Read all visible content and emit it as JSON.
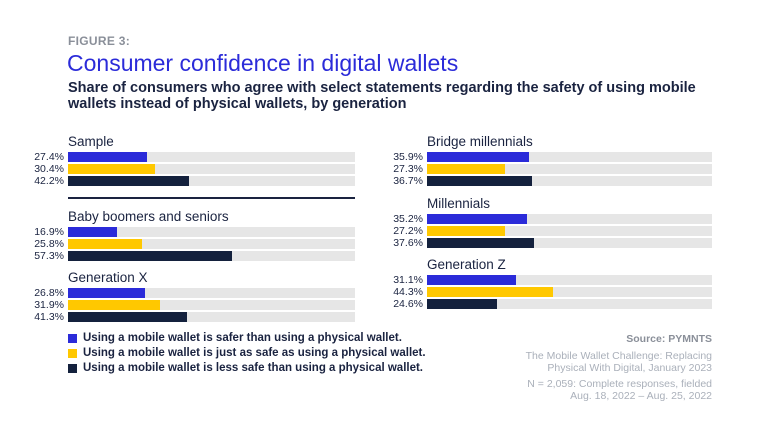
{
  "figure_label": "FIGURE 3:",
  "title": "Consumer confidence in digital wallets",
  "subtitle": "Share of consumers who agree with select statements regarding the safety of using mobile wallets instead of physical wallets, by generation",
  "colors": {
    "safer": "#2b2bd9",
    "just_as_safe": "#ffc800",
    "less_safe": "#14213d",
    "track": "#e6e6e6"
  },
  "chart_data": {
    "type": "bar",
    "orientation": "horizontal",
    "xlim": [
      0,
      100
    ],
    "unit": "%",
    "series_names": [
      "Using a mobile wallet is safer than using a physical wallet.",
      "Using a mobile wallet is just as safe as using a physical wallet.",
      "Using a mobile wallet is less safe than using a physical wallet."
    ],
    "groups": [
      {
        "name": "Sample",
        "values": [
          27.4,
          30.4,
          42.2
        ],
        "labels": [
          "27.4%",
          "30.4%",
          "42.2%"
        ]
      },
      {
        "name": "Baby boomers and seniors",
        "values": [
          16.9,
          25.8,
          57.3
        ],
        "labels": [
          "16.9%",
          "25.8%",
          "57.3%"
        ]
      },
      {
        "name": "Generation X",
        "values": [
          26.8,
          31.9,
          41.3
        ],
        "labels": [
          "26.8%",
          "31.9%",
          "41.3%"
        ]
      },
      {
        "name": "Bridge millennials",
        "values": [
          35.9,
          27.3,
          36.7
        ],
        "labels": [
          "35.9%",
          "27.3%",
          "36.7%"
        ]
      },
      {
        "name": "Millennials",
        "values": [
          35.2,
          27.2,
          37.6
        ],
        "labels": [
          "35.2%",
          "27.2%",
          "37.6%"
        ]
      },
      {
        "name": "Generation Z",
        "values": [
          31.1,
          44.3,
          24.6
        ],
        "labels": [
          "31.1%",
          "44.3%",
          "24.6%"
        ]
      }
    ]
  },
  "source": {
    "label": "Source: PYMNTS",
    "line1": "The Mobile Wallet Challenge: Replacing",
    "line2": "Physical With Digital, January 2023",
    "line3": "N = 2,059: Complete responses, fielded",
    "line4": "Aug. 18, 2022 – Aug. 25, 2022"
  }
}
